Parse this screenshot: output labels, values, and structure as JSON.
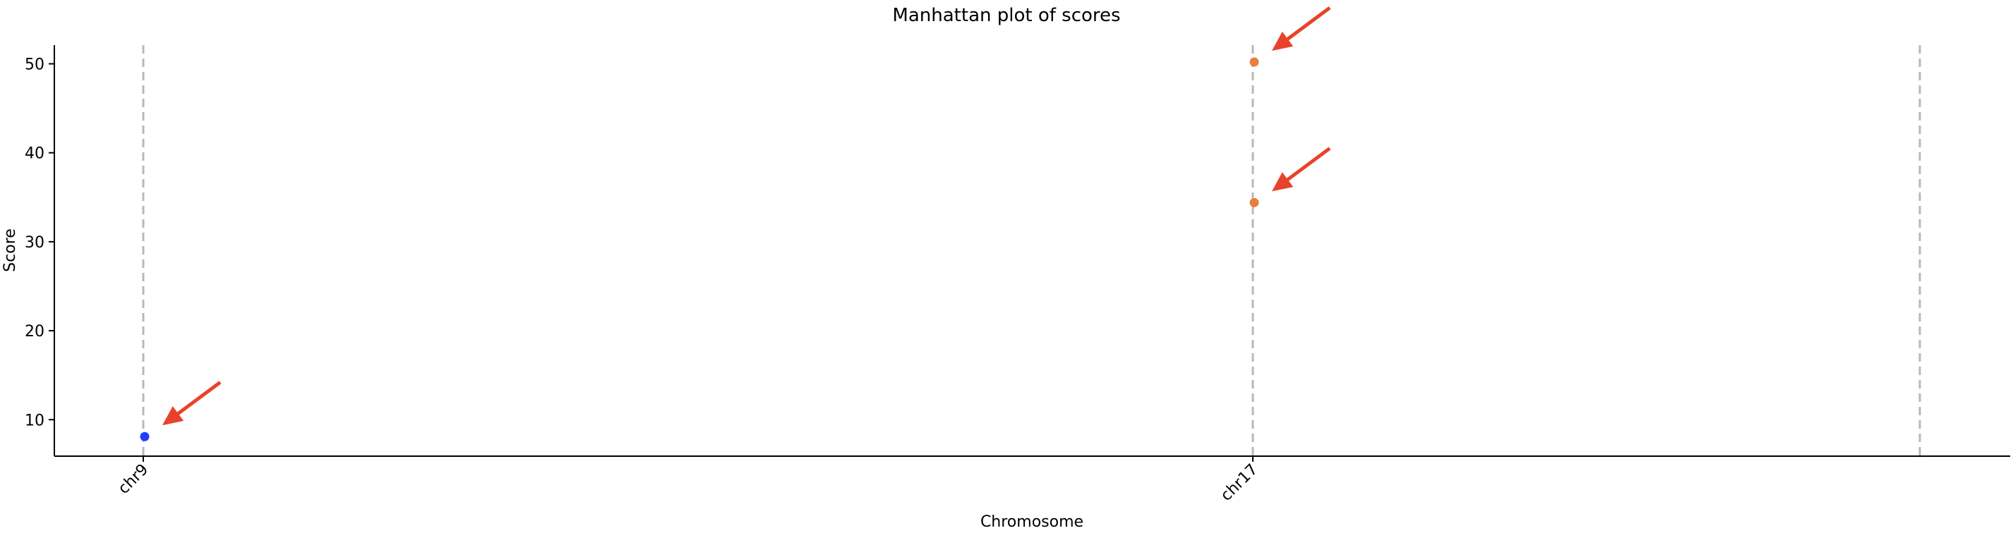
{
  "chart_data": {
    "type": "scatter",
    "title": "Manhattan plot of scores",
    "xlabel": "Chromosome",
    "ylabel": "Score",
    "ylim": [
      5.9,
      52.1
    ],
    "yticks": [
      10,
      20,
      30,
      40,
      50
    ],
    "x_categories": [
      "chr9",
      "chr17"
    ],
    "series": [
      {
        "color": "#1f3fff",
        "points": [
          {
            "chromosome": "chr9",
            "score": 8.1
          }
        ]
      },
      {
        "color": "#e87f3c",
        "points": [
          {
            "chromosome": "chr17",
            "score": 50.2
          },
          {
            "chromosome": "chr17",
            "score": 34.4
          }
        ]
      }
    ],
    "chromosome_boundaries": 3,
    "highlight_arrow_color": "#e8432a",
    "boundary_line_color": "#b8b8b8",
    "grid": false
  }
}
